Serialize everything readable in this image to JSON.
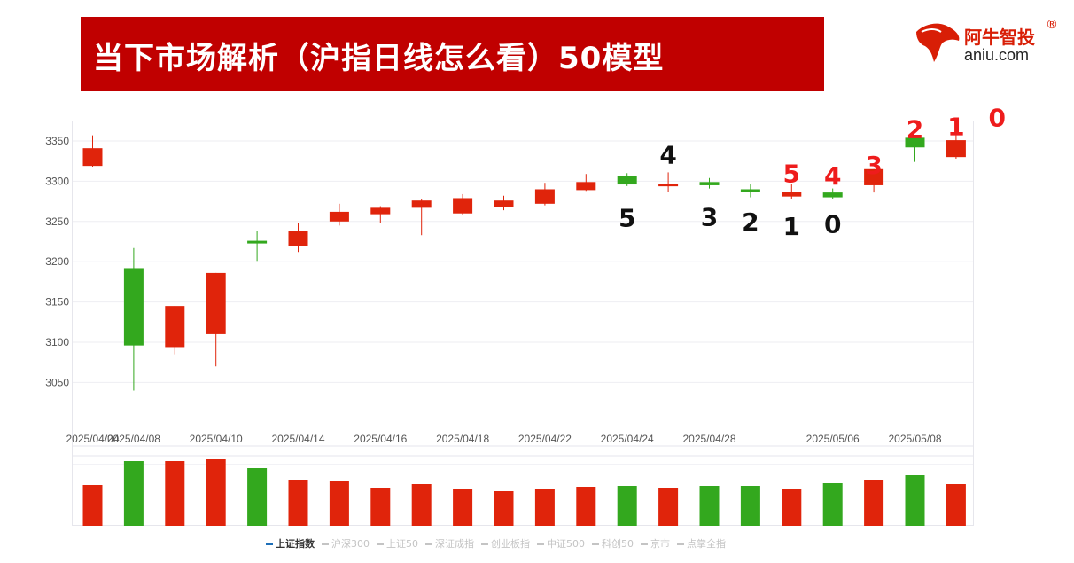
{
  "header": {
    "title": "当下市场解析（沪指日线怎么看）50模型"
  },
  "logo": {
    "name": "阿牛智投",
    "reg_mark": "®",
    "domain": "aniu.com",
    "icon": "bull-logo-icon"
  },
  "colors": {
    "up": "#e0240b",
    "down": "#33a81e",
    "banner": "#c00000",
    "red_label": "#ee1c1c",
    "black_label": "#111111"
  },
  "chart_data": {
    "type": "candlestick",
    "title": "",
    "xlabel": "",
    "ylabel": "",
    "ylim": [
      3000,
      3380
    ],
    "yticks": [
      3050,
      3100,
      3150,
      3200,
      3250,
      3300,
      3350
    ],
    "grid": true,
    "date_ticks": [
      {
        "idx": 0,
        "label": "2025/04/04"
      },
      {
        "idx": 1,
        "label": "2025/04/08"
      },
      {
        "idx": 3,
        "label": "2025/04/10"
      },
      {
        "idx": 5,
        "label": "2025/04/14"
      },
      {
        "idx": 7,
        "label": "2025/04/16"
      },
      {
        "idx": 9,
        "label": "2025/04/18"
      },
      {
        "idx": 11,
        "label": "2025/04/22"
      },
      {
        "idx": 13,
        "label": "2025/04/24"
      },
      {
        "idx": 15,
        "label": "2025/04/28"
      },
      {
        "idx": 18,
        "label": "2025/05/06"
      },
      {
        "idx": 20,
        "label": "2025/05/08"
      }
    ],
    "candles": [
      {
        "open": 3319,
        "close": 3341,
        "low": 3318,
        "high": 3357,
        "volume": 46
      },
      {
        "open": 3192,
        "close": 3096,
        "low": 3040,
        "high": 3217,
        "volume": 73
      },
      {
        "open": 3094,
        "close": 3145,
        "low": 3085,
        "high": 3145,
        "volume": 73
      },
      {
        "open": 3110,
        "close": 3186,
        "low": 3070,
        "high": 3186,
        "volume": 75
      },
      {
        "open": 3226,
        "close": 3223,
        "low": 3201,
        "high": 3238,
        "volume": 65
      },
      {
        "open": 3219,
        "close": 3238,
        "low": 3212,
        "high": 3248,
        "volume": 52
      },
      {
        "open": 3250,
        "close": 3262,
        "low": 3245,
        "high": 3272,
        "volume": 51
      },
      {
        "open": 3259,
        "close": 3267,
        "low": 3248,
        "high": 3269,
        "volume": 43
      },
      {
        "open": 3267,
        "close": 3276,
        "low": 3233,
        "high": 3278,
        "volume": 47
      },
      {
        "open": 3260,
        "close": 3279,
        "low": 3258,
        "high": 3284,
        "volume": 42
      },
      {
        "open": 3268,
        "close": 3276,
        "low": 3264,
        "high": 3282,
        "volume": 39
      },
      {
        "open": 3272,
        "close": 3290,
        "low": 3270,
        "high": 3298,
        "volume": 41
      },
      {
        "open": 3289,
        "close": 3299,
        "low": 3288,
        "high": 3309,
        "volume": 44
      },
      {
        "open": 3307,
        "close": 3296,
        "low": 3294,
        "high": 3310,
        "volume": 45
      },
      {
        "open": 3294,
        "close": 3297,
        "low": 3287,
        "high": 3311,
        "volume": 43
      },
      {
        "open": 3299,
        "close": 3295,
        "low": 3291,
        "high": 3304,
        "volume": 45
      },
      {
        "open": 3290,
        "close": 3287,
        "low": 3280,
        "high": 3296,
        "volume": 45
      },
      {
        "open": 3281,
        "close": 3287,
        "low": 3278,
        "high": 3296,
        "volume": 42
      },
      {
        "open": 3286,
        "close": 3280,
        "low": 3278,
        "high": 3291,
        "volume": 48
      },
      {
        "open": 3295,
        "close": 3315,
        "low": 3286,
        "high": 3315,
        "volume": 52
      },
      {
        "open": 3354,
        "close": 3342,
        "low": 3324,
        "high": 3355,
        "volume": 57
      },
      {
        "open": 3330,
        "close": 3351,
        "low": 3328,
        "high": 3358,
        "volume": 47
      }
    ],
    "annotations": [
      {
        "idx": 13,
        "text": "5",
        "price": 3255,
        "color": "black"
      },
      {
        "idx": 14,
        "text": "4",
        "price": 3333,
        "color": "black"
      },
      {
        "idx": 15,
        "text": "3",
        "price": 3256,
        "color": "black"
      },
      {
        "idx": 16,
        "text": "2",
        "price": 3250,
        "color": "black"
      },
      {
        "idx": 17,
        "text": "1",
        "price": 3244,
        "color": "black"
      },
      {
        "idx": 18,
        "text": "0",
        "price": 3247,
        "color": "black"
      },
      {
        "idx": 17,
        "text": "5",
        "price": 3310,
        "color": "red"
      },
      {
        "idx": 18,
        "text": "4",
        "price": 3307,
        "color": "red"
      },
      {
        "idx": 19,
        "text": "3",
        "price": 3320,
        "color": "red"
      },
      {
        "idx": 20,
        "text": "2",
        "price": 3365,
        "color": "red"
      },
      {
        "idx": 21,
        "text": "1",
        "price": 3368,
        "color": "red"
      },
      {
        "idx": 22,
        "text": "0",
        "price": 3379,
        "color": "red"
      }
    ],
    "volume_colors_note": "",
    "volume_up_flags": [
      true,
      false,
      true,
      true,
      false,
      true,
      true,
      true,
      true,
      true,
      true,
      true,
      true,
      false,
      true,
      false,
      false,
      true,
      false,
      true,
      false,
      true
    ]
  },
  "legend": {
    "items": [
      {
        "label": "上证指数",
        "active": true
      },
      {
        "label": "沪深300",
        "active": false
      },
      {
        "label": "上证50",
        "active": false
      },
      {
        "label": "深证成指",
        "active": false
      },
      {
        "label": "创业板指",
        "active": false
      },
      {
        "label": "中证500",
        "active": false
      },
      {
        "label": "科创50",
        "active": false
      },
      {
        "label": "京市",
        "active": false
      },
      {
        "label": "点掌全指",
        "active": false
      }
    ]
  }
}
